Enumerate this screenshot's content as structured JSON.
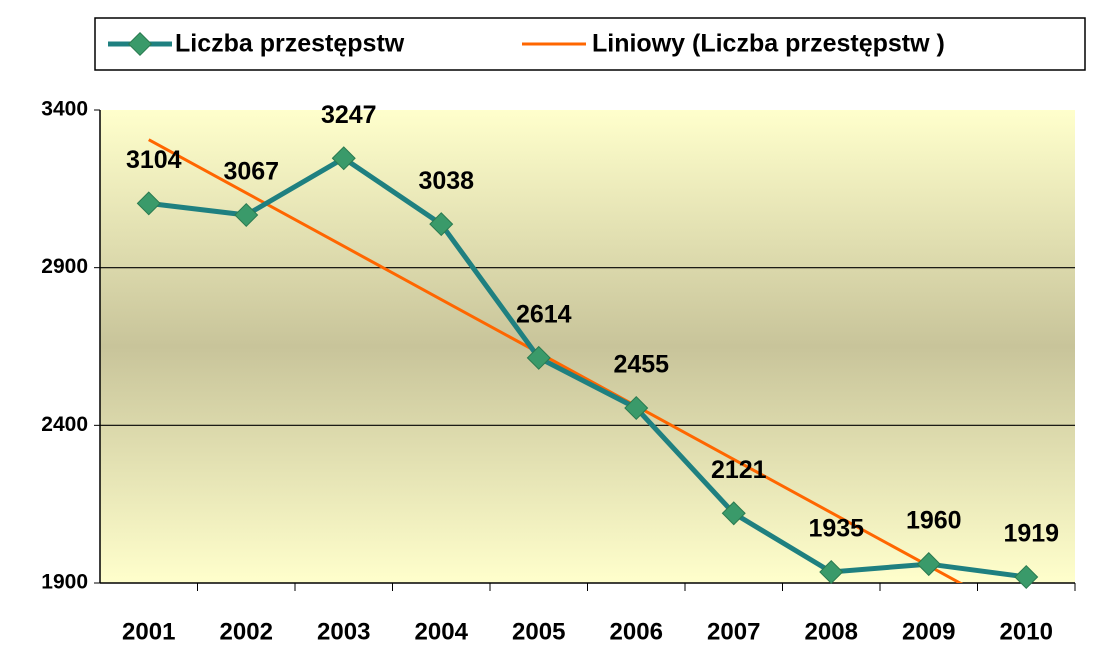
{
  "chart_data": {
    "type": "line",
    "categories": [
      "2001",
      "2002",
      "2003",
      "2004",
      "2005",
      "2006",
      "2007",
      "2008",
      "2009",
      "2010"
    ],
    "series": [
      {
        "name": "Liczba przestępstw",
        "color": "#1f8080",
        "marker_color": "#3a9a6a",
        "values": [
          3104,
          3067,
          3247,
          3038,
          2614,
          2455,
          2121,
          1935,
          1960,
          1919
        ],
        "data_labels": true
      },
      {
        "name": "Liniowy (Liczba przestępstw )",
        "color": "#ff6600",
        "values": [
          3306,
          3137,
          2968,
          2799,
          2630,
          2461,
          2292,
          2123,
          1954,
          1785
        ],
        "data_labels": false
      }
    ],
    "ylim": [
      1900,
      3400
    ],
    "yticks": [
      1900,
      2400,
      2900,
      3400
    ],
    "grid": true,
    "legend": "top"
  }
}
